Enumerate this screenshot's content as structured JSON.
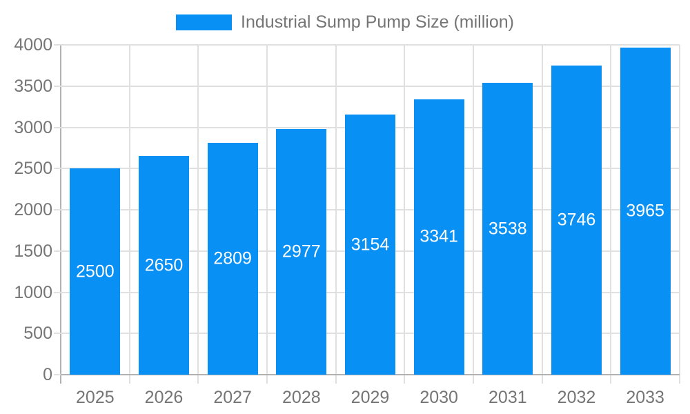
{
  "chart_data": {
    "type": "bar",
    "title": "Industrial Sump Pump Size (million)",
    "legend": [
      "Industrial Sump Pump Size (million)"
    ],
    "legend_position": "top-center",
    "categories": [
      "2025",
      "2026",
      "2027",
      "2028",
      "2029",
      "2030",
      "2031",
      "2032",
      "2033"
    ],
    "values": [
      2500,
      2650,
      2809,
      2977,
      3154,
      3341,
      3538,
      3746,
      3965
    ],
    "xlabel": "",
    "ylabel": "",
    "ylim": [
      0,
      4000
    ],
    "yticks": [
      0,
      500,
      1000,
      1500,
      2000,
      2500,
      3000,
      3500,
      4000
    ],
    "grid": true,
    "bar_value_labels_visible": true,
    "colors": {
      "bar": "#0990F5",
      "bar_label": "#FFFFFF",
      "axis_text": "#757575",
      "gridline": "#E0E0E0",
      "axis_line": "#B2B2B2",
      "background": "#FFFFFF"
    }
  }
}
